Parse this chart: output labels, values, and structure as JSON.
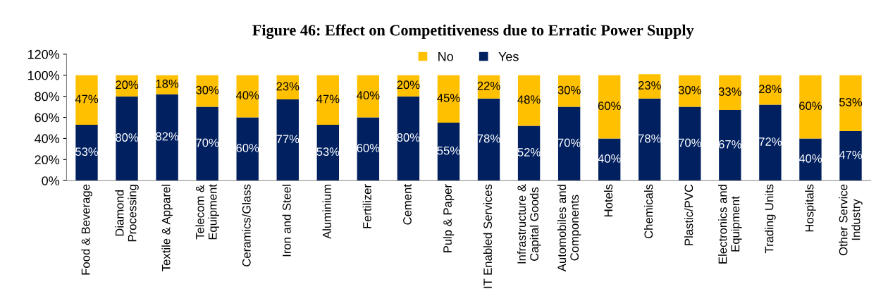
{
  "chart_data": {
    "type": "bar",
    "stacked": true,
    "title": "Figure 46: Effect on Competitiveness due to Erratic Power Supply",
    "categories": [
      "Food & Beverage",
      "Diamond\nProcessing",
      "Textile & Apparel",
      "Telecom &\nEquipment",
      "Ceramics/Glass",
      "Iron and Steel",
      "Aluminium",
      "Fertilizer",
      "Cement",
      "Pulp & Paper",
      "IT Enabled Services",
      "Infrastructure &\nCapital Goods",
      "Automobiles and\nComponents",
      "Hotels",
      "Chemicals",
      "Plastic/PVC",
      "Electronics and\nEquipment",
      "Trading Units",
      "Hospitals",
      "Other Service\nIndustry"
    ],
    "series": [
      {
        "name": "Yes",
        "color": "#002060",
        "values": [
          53,
          80,
          82,
          70,
          60,
          77,
          53,
          60,
          80,
          55,
          78,
          52,
          70,
          40,
          78,
          70,
          67,
          72,
          40,
          47
        ],
        "value_labels": [
          "53%",
          "80%",
          "82%",
          "70%",
          "60%",
          "77%",
          "53%",
          "60%",
          "80%",
          "55%",
          "78%",
          "52%",
          "70%",
          "40%",
          "78%",
          "70%",
          "67%",
          "72%",
          "40%",
          "47%"
        ]
      },
      {
        "name": "No",
        "color": "#ffc000",
        "values": [
          47,
          20,
          18,
          30,
          40,
          23,
          47,
          40,
          20,
          45,
          22,
          48,
          30,
          60,
          23,
          30,
          33,
          28,
          60,
          53
        ],
        "value_labels": [
          "47%",
          "20%",
          "18%",
          "30%",
          "40%",
          "23%",
          "47%",
          "40%",
          "20%",
          "45%",
          "22%",
          "48%",
          "30%",
          "60%",
          "23%",
          "30%",
          "33%",
          "28%",
          "60%",
          "53%"
        ]
      }
    ],
    "ylim": [
      0,
      120
    ],
    "yticks": [
      {
        "value": 0,
        "label": "0%"
      },
      {
        "value": 20,
        "label": "20%"
      },
      {
        "value": 40,
        "label": "40%"
      },
      {
        "value": 60,
        "label": "60%"
      },
      {
        "value": 80,
        "label": "80%"
      },
      {
        "value": 100,
        "label": "100%"
      },
      {
        "value": 120,
        "label": "120%"
      }
    ],
    "grid": false,
    "legend": "top"
  }
}
